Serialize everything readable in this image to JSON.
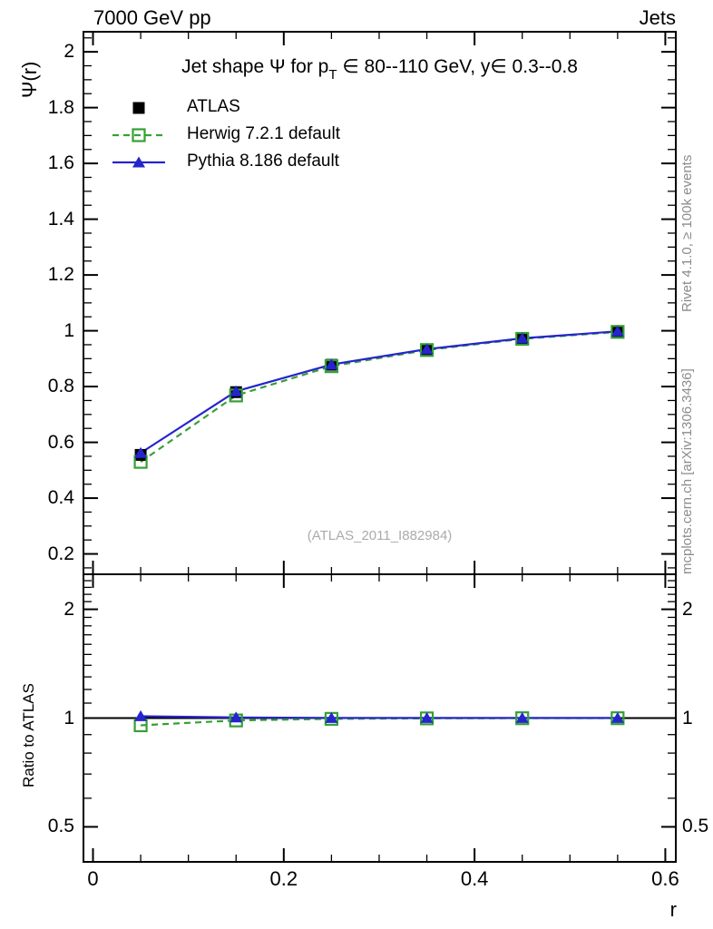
{
  "header": {
    "left": "7000 GeV pp",
    "right": "Jets"
  },
  "side_notes": {
    "top_right": "Rivet 4.1.0, ≥ 100k events",
    "bottom_right": "mcplots.cern.ch [arXiv:1306.3436]"
  },
  "watermark": "(ATLAS_2011_I882984)",
  "chart_data": {
    "type": "line",
    "title": {
      "pre": "Jet shape Ψ for p",
      "sub": "T",
      "post": " ∈ 80--110 GeV, y∈ 0.3--0.8"
    },
    "xlabel": "r",
    "ylabel_main": "Ψ(r)",
    "ylabel_ratio": "Ratio to ATLAS",
    "legend_position": "top-left",
    "grid": false,
    "x": [
      0.05,
      0.15,
      0.25,
      0.35,
      0.45,
      0.55
    ],
    "series": [
      {
        "name": "ATLAS",
        "color": "#000000",
        "marker": "square-filled",
        "line": "none",
        "show_in_ratio": false,
        "values": [
          0.555,
          0.78,
          0.878,
          0.933,
          0.972,
          0.997
        ],
        "ratio": [
          1,
          1,
          1,
          1,
          1,
          1
        ]
      },
      {
        "name": "Herwig 7.2.1 default",
        "color": "#35a035",
        "marker": "square-open",
        "line": "dashed",
        "show_in_ratio": true,
        "values": [
          0.53,
          0.768,
          0.873,
          0.931,
          0.971,
          0.996
        ],
        "ratio": [
          0.955,
          0.985,
          0.995,
          0.998,
          0.999,
          0.999
        ]
      },
      {
        "name": "Pythia 8.186 default",
        "color": "#2525cc",
        "marker": "triangle-filled",
        "line": "solid",
        "show_in_ratio": true,
        "values": [
          0.562,
          0.783,
          0.879,
          0.934,
          0.973,
          0.998
        ],
        "ratio": [
          1.012,
          1.004,
          1.001,
          1.001,
          1.001,
          1.001
        ]
      }
    ],
    "xlim": [
      -0.01,
      0.611
    ],
    "ylim_main": [
      0.127,
      2.072
    ],
    "ylim_ratio_log": [
      0.4,
      2.5
    ],
    "ratio_reference_line": 1,
    "x_ticks": {
      "major": [
        0,
        0.2,
        0.4,
        0.6
      ],
      "labels": [
        "0",
        "0.2",
        "0.4",
        "0.6"
      ],
      "minor_step": 0.05
    },
    "y_ticks_main": {
      "major": [
        0.2,
        0.4,
        0.6,
        0.8,
        1,
        1.2,
        1.4,
        1.6,
        1.8,
        2
      ],
      "labels": [
        "0.2",
        "0.4",
        "0.6",
        "0.8",
        "1",
        "1.2",
        "1.4",
        "1.6",
        "1.8",
        "2"
      ],
      "minor_step": 0.05
    },
    "y_ticks_ratio": {
      "major": [
        0.5,
        1,
        2
      ],
      "labels": [
        "0.5",
        "1",
        "2"
      ],
      "minor": [
        0.4,
        0.6,
        0.7,
        0.8,
        0.9,
        1.1,
        1.2,
        1.3,
        1.4,
        1.5,
        1.6,
        1.7,
        1.8,
        1.9,
        2.1,
        2.2,
        2.3,
        2.4
      ]
    }
  }
}
